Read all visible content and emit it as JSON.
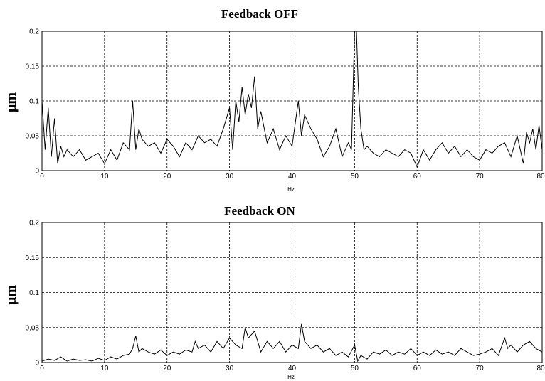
{
  "chart_data": [
    {
      "type": "line",
      "title": "Feedback OFF",
      "xlabel": "Hz",
      "ylabel": "μm",
      "xlim": [
        0,
        80
      ],
      "ylim": [
        0,
        0.2
      ],
      "grid": true,
      "xticks": [
        "0",
        "10",
        "20",
        "30",
        "40",
        "50",
        "60",
        "70",
        "80"
      ],
      "yticks": [
        "0",
        "0.05",
        "0.1",
        "0.15",
        "0.2"
      ],
      "series": [
        {
          "x": [
            0,
            0.5,
            1,
            1.5,
            2,
            2.5,
            3,
            3.5,
            4,
            5,
            6,
            7,
            8,
            9,
            10,
            11,
            12,
            13,
            14,
            14.5,
            15,
            15.5,
            16,
            17,
            18,
            19,
            20,
            21,
            22,
            23,
            24,
            25,
            26,
            27,
            28,
            29,
            30,
            30.5,
            31,
            31.5,
            32,
            32.5,
            33,
            33.5,
            34,
            34.5,
            35,
            36,
            37,
            38,
            39,
            40,
            41,
            41.5,
            42,
            43,
            44,
            45,
            46,
            47,
            48,
            49,
            49.5,
            50,
            50.3,
            50.6,
            51,
            51.5,
            52,
            53,
            54,
            55,
            56,
            57,
            58,
            59,
            60,
            61,
            62,
            63,
            64,
            65,
            66,
            67,
            68,
            69,
            70,
            71,
            72,
            73,
            74,
            75,
            76,
            77,
            77.5,
            78,
            78.5,
            79,
            79.5,
            80
          ],
          "values": [
            0.1,
            0.03,
            0.09,
            0.02,
            0.075,
            0.01,
            0.035,
            0.02,
            0.03,
            0.02,
            0.03,
            0.015,
            0.02,
            0.025,
            0.01,
            0.03,
            0.015,
            0.04,
            0.03,
            0.1,
            0.03,
            0.06,
            0.045,
            0.035,
            0.04,
            0.025,
            0.045,
            0.035,
            0.02,
            0.04,
            0.03,
            0.05,
            0.04,
            0.045,
            0.035,
            0.06,
            0.09,
            0.03,
            0.1,
            0.07,
            0.12,
            0.08,
            0.11,
            0.09,
            0.135,
            0.06,
            0.085,
            0.04,
            0.06,
            0.03,
            0.05,
            0.035,
            0.1,
            0.05,
            0.08,
            0.06,
            0.045,
            0.02,
            0.035,
            0.06,
            0.02,
            0.04,
            0.03,
            0.2,
            0.2,
            0.12,
            0.06,
            0.03,
            0.035,
            0.025,
            0.02,
            0.03,
            0.025,
            0.02,
            0.03,
            0.025,
            0.005,
            0.03,
            0.015,
            0.03,
            0.04,
            0.025,
            0.035,
            0.02,
            0.03,
            0.02,
            0.015,
            0.03,
            0.025,
            0.035,
            0.04,
            0.02,
            0.05,
            0.01,
            0.055,
            0.04,
            0.06,
            0.03,
            0.065,
            0.03
          ]
        }
      ]
    },
    {
      "type": "line",
      "title": "Feedback ON",
      "xlabel": "Hz",
      "ylabel": "μm",
      "xlim": [
        0,
        80
      ],
      "ylim": [
        0,
        0.2
      ],
      "grid": true,
      "xticks": [
        "0",
        "10",
        "20",
        "30",
        "40",
        "50",
        "60",
        "70",
        "80"
      ],
      "yticks": [
        "0",
        "0.05",
        "0.1",
        "0.15",
        "0.2"
      ],
      "series": [
        {
          "x": [
            0,
            1,
            2,
            3,
            4,
            5,
            6,
            7,
            8,
            9,
            10,
            11,
            12,
            13,
            14,
            14.5,
            15,
            15.5,
            16,
            17,
            18,
            19,
            20,
            21,
            22,
            23,
            24,
            24.5,
            25,
            26,
            27,
            28,
            29,
            30,
            31,
            32,
            32.5,
            33,
            34,
            35,
            36,
            37,
            38,
            39,
            40,
            41,
            41.5,
            42,
            43,
            44,
            45,
            46,
            47,
            48,
            49,
            50,
            50.5,
            51,
            52,
            53,
            54,
            55,
            56,
            57,
            58,
            59,
            60,
            61,
            62,
            63,
            64,
            65,
            66,
            67,
            68,
            69,
            70,
            71,
            72,
            73,
            74,
            74.5,
            75,
            76,
            77,
            78,
            79,
            80
          ],
          "values": [
            0.002,
            0.005,
            0.003,
            0.008,
            0.002,
            0.005,
            0.003,
            0.004,
            0.002,
            0.006,
            0.003,
            0.008,
            0.005,
            0.01,
            0.012,
            0.02,
            0.038,
            0.015,
            0.02,
            0.015,
            0.012,
            0.018,
            0.01,
            0.015,
            0.012,
            0.018,
            0.015,
            0.03,
            0.02,
            0.025,
            0.015,
            0.03,
            0.02,
            0.035,
            0.025,
            0.02,
            0.05,
            0.035,
            0.045,
            0.015,
            0.03,
            0.02,
            0.03,
            0.015,
            0.025,
            0.02,
            0.055,
            0.03,
            0.02,
            0.025,
            0.015,
            0.02,
            0.01,
            0.015,
            0.008,
            0.025,
            0.002,
            0.01,
            0.005,
            0.015,
            0.012,
            0.018,
            0.01,
            0.015,
            0.012,
            0.02,
            0.01,
            0.015,
            0.01,
            0.018,
            0.012,
            0.015,
            0.01,
            0.02,
            0.015,
            0.01,
            0.012,
            0.015,
            0.02,
            0.01,
            0.035,
            0.02,
            0.025,
            0.015,
            0.025,
            0.03,
            0.02,
            0.015
          ]
        }
      ]
    }
  ]
}
